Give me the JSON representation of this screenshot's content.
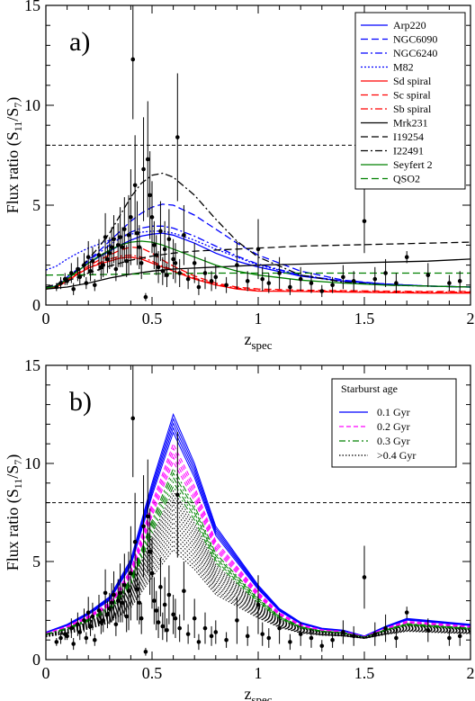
{
  "chart_data": [
    {
      "type": "line",
      "panel_label": "a)",
      "xlabel": "z",
      "xlabel_sub": "spec",
      "ylabel": "Flux ratio (S",
      "ylabel_sub1": "11",
      "ylabel_mid": "/S",
      "ylabel_sub2": "7",
      "ylabel_end": ")",
      "xlim": [
        0,
        2
      ],
      "ylim": [
        0,
        15
      ],
      "xticks": [
        "0",
        "0.5",
        "1",
        "1.5",
        "2"
      ],
      "yticks": [
        "0",
        "5",
        "10",
        "15"
      ],
      "reference_line": {
        "y": 8,
        "style": "dashed"
      },
      "legend_position": "top-right",
      "series": [
        {
          "name": "Arp220",
          "color": "#0000ff",
          "dash": "solid",
          "x": [
            0.0,
            0.05,
            0.1,
            0.15,
            0.2,
            0.25,
            0.3,
            0.35,
            0.4,
            0.45,
            0.5,
            0.55,
            0.6,
            0.7,
            0.8,
            0.9,
            1.0,
            1.2,
            1.4,
            1.6,
            1.8,
            2.0
          ],
          "y": [
            0.85,
            0.95,
            1.3,
            1.7,
            2.1,
            2.4,
            2.7,
            3.0,
            3.25,
            3.45,
            3.55,
            3.6,
            3.5,
            3.1,
            2.6,
            2.2,
            1.9,
            1.45,
            1.2,
            1.05,
            0.95,
            0.9
          ]
        },
        {
          "name": "NGC6090",
          "color": "#0000ff",
          "dash": "8,4",
          "x": [
            0.0,
            0.05,
            0.1,
            0.15,
            0.2,
            0.25,
            0.3,
            0.35,
            0.4,
            0.45,
            0.5,
            0.55,
            0.6,
            0.7,
            0.8,
            0.9,
            1.0,
            1.2,
            1.4,
            1.6,
            1.8,
            2.0
          ],
          "y": [
            0.9,
            1.0,
            1.4,
            1.8,
            2.25,
            2.7,
            3.2,
            3.7,
            4.2,
            4.6,
            4.9,
            5.05,
            5.0,
            4.5,
            3.8,
            3.1,
            2.5,
            1.7,
            1.25,
            1.05,
            0.95,
            0.9
          ]
        },
        {
          "name": "NGC6240",
          "color": "#0000ff",
          "dash": "8,3,2,3",
          "x": [
            0.0,
            0.05,
            0.1,
            0.15,
            0.2,
            0.25,
            0.3,
            0.35,
            0.4,
            0.45,
            0.5,
            0.55,
            0.6,
            0.7,
            0.8,
            0.9,
            1.0,
            1.2,
            1.4,
            1.6,
            1.8,
            2.0
          ],
          "y": [
            0.85,
            0.95,
            1.3,
            1.75,
            2.2,
            2.6,
            3.0,
            3.35,
            3.65,
            3.85,
            3.95,
            3.95,
            3.85,
            3.45,
            2.95,
            2.45,
            2.05,
            1.5,
            1.2,
            1.05,
            0.95,
            0.9
          ]
        },
        {
          "name": "M82",
          "color": "#0000ff",
          "dash": "2,2",
          "x": [
            0.0,
            0.05,
            0.1,
            0.15,
            0.2,
            0.25,
            0.3,
            0.35,
            0.4,
            0.45,
            0.5,
            0.55,
            0.6,
            0.7,
            0.8,
            0.9,
            1.0,
            1.2,
            1.4,
            1.6,
            1.8,
            2.0
          ],
          "y": [
            1.75,
            1.95,
            2.3,
            2.6,
            2.85,
            3.05,
            3.25,
            3.4,
            3.55,
            3.65,
            3.7,
            3.7,
            3.6,
            3.25,
            2.8,
            2.4,
            2.0,
            1.5,
            1.2,
            1.05,
            0.95,
            0.9
          ]
        },
        {
          "name": "Sd spiral",
          "color": "#ff0000",
          "dash": "solid",
          "x": [
            0.0,
            0.05,
            0.1,
            0.15,
            0.2,
            0.25,
            0.3,
            0.35,
            0.4,
            0.45,
            0.5,
            0.55,
            0.6,
            0.7,
            0.8,
            0.9,
            1.0,
            1.2,
            1.4,
            1.6,
            1.8,
            2.0
          ],
          "y": [
            0.8,
            0.9,
            1.2,
            1.55,
            1.85,
            2.05,
            2.2,
            2.35,
            2.4,
            2.3,
            2.1,
            1.9,
            1.7,
            1.3,
            1.0,
            0.8,
            0.7,
            0.68,
            0.65,
            0.62,
            0.6,
            0.6
          ]
        },
        {
          "name": "Sc spiral",
          "color": "#ff0000",
          "dash": "8,4",
          "x": [
            0.0,
            0.05,
            0.1,
            0.15,
            0.2,
            0.25,
            0.3,
            0.35,
            0.4,
            0.45,
            0.5,
            0.55,
            0.6,
            0.7,
            0.8,
            0.9,
            1.0,
            1.2,
            1.4,
            1.6,
            1.8,
            2.0
          ],
          "y": [
            0.8,
            0.92,
            1.25,
            1.6,
            1.95,
            2.25,
            2.5,
            2.75,
            2.9,
            2.85,
            2.6,
            2.25,
            1.95,
            1.45,
            1.1,
            0.9,
            0.8,
            0.75,
            0.72,
            0.7,
            0.68,
            0.68
          ]
        },
        {
          "name": "Sb spiral",
          "color": "#ff0000",
          "dash": "8,3,2,3",
          "x": [
            0.0,
            0.05,
            0.1,
            0.15,
            0.2,
            0.25,
            0.3,
            0.35,
            0.4,
            0.45,
            0.5,
            0.55,
            0.6,
            0.7,
            0.8,
            0.9,
            1.0,
            1.2,
            1.4,
            1.6,
            1.8,
            2.0
          ],
          "y": [
            0.8,
            0.9,
            1.2,
            1.55,
            1.85,
            2.1,
            2.3,
            2.45,
            2.5,
            2.4,
            2.2,
            1.95,
            1.75,
            1.35,
            1.05,
            0.85,
            0.72,
            0.7,
            0.68,
            0.66,
            0.65,
            0.65
          ]
        },
        {
          "name": "Mrk231",
          "color": "#000000",
          "dash": "solid",
          "x": [
            0.0,
            0.1,
            0.2,
            0.3,
            0.4,
            0.5,
            0.6,
            0.7,
            0.8,
            0.9,
            1.0,
            1.2,
            1.4,
            1.6,
            1.8,
            2.0
          ],
          "y": [
            0.8,
            0.9,
            1.1,
            1.35,
            1.55,
            1.7,
            1.8,
            1.85,
            1.9,
            1.95,
            2.0,
            2.05,
            2.1,
            2.15,
            2.2,
            2.3
          ]
        },
        {
          "name": "I19254",
          "color": "#000000",
          "dash": "8,4",
          "x": [
            0.0,
            0.1,
            0.2,
            0.3,
            0.4,
            0.5,
            0.6,
            0.7,
            0.8,
            0.9,
            1.0,
            1.2,
            1.4,
            1.6,
            1.8,
            2.0
          ],
          "y": [
            0.9,
            1.2,
            1.6,
            1.95,
            2.25,
            2.45,
            2.6,
            2.7,
            2.75,
            2.8,
            2.85,
            2.95,
            3.0,
            3.05,
            3.1,
            3.15
          ]
        },
        {
          "name": "I22491",
          "color": "#000000",
          "dash": "8,3,2,3",
          "x": [
            0.0,
            0.05,
            0.1,
            0.15,
            0.2,
            0.25,
            0.3,
            0.35,
            0.4,
            0.45,
            0.5,
            0.55,
            0.6,
            0.7,
            0.8,
            0.9,
            1.0,
            1.2,
            1.4,
            1.6,
            1.8,
            2.0
          ],
          "y": [
            0.85,
            0.95,
            1.3,
            1.75,
            2.3,
            2.9,
            3.6,
            4.5,
            5.4,
            6.1,
            6.5,
            6.6,
            6.4,
            5.5,
            4.3,
            3.2,
            2.4,
            1.5,
            1.15,
            1.0,
            0.95,
            0.9
          ]
        },
        {
          "name": "Seyfert 2",
          "color": "#008000",
          "dash": "solid",
          "x": [
            0.0,
            0.05,
            0.1,
            0.15,
            0.2,
            0.25,
            0.3,
            0.35,
            0.4,
            0.45,
            0.5,
            0.55,
            0.6,
            0.7,
            0.8,
            0.9,
            1.0,
            1.2,
            1.4,
            1.6,
            1.8,
            2.0
          ],
          "y": [
            0.85,
            0.95,
            1.3,
            1.7,
            2.1,
            2.45,
            2.75,
            3.0,
            3.15,
            3.2,
            3.15,
            3.0,
            2.8,
            2.4,
            2.0,
            1.7,
            1.5,
            1.25,
            1.1,
            1.0,
            0.95,
            0.9
          ]
        },
        {
          "name": "QSO2",
          "color": "#008000",
          "dash": "8,4",
          "x": [
            0.0,
            0.2,
            0.4,
            0.6,
            0.8,
            1.0,
            1.2,
            1.4,
            1.6,
            1.8,
            2.0
          ],
          "y": [
            1.5,
            1.52,
            1.55,
            1.58,
            1.6,
            1.6,
            1.6,
            1.6,
            1.6,
            1.6,
            1.6
          ]
        }
      ]
    },
    {
      "type": "line",
      "panel_label": "b)",
      "xlabel": "z",
      "xlabel_sub": "spec",
      "ylabel": "Flux ratio (S",
      "ylabel_sub1": "11",
      "ylabel_mid": "/S",
      "ylabel_sub2": "7",
      "ylabel_end": ")",
      "xlim": [
        0,
        2
      ],
      "ylim": [
        0,
        15
      ],
      "xticks": [
        "0",
        "0.5",
        "1",
        "1.5",
        "2"
      ],
      "yticks": [
        "0",
        "5",
        "10",
        "15"
      ],
      "reference_line": {
        "y": 8,
        "style": "dashed"
      },
      "legend_title": "Starburst age",
      "legend_position": "top-right",
      "x_grid": [
        0.0,
        0.1,
        0.2,
        0.3,
        0.4,
        0.5,
        0.6,
        0.7,
        0.8,
        0.9,
        1.0,
        1.1,
        1.2,
        1.3,
        1.4,
        1.5,
        1.6,
        1.7,
        1.8,
        1.9,
        2.0
      ],
      "base_shape": [
        1.4,
        1.8,
        2.4,
        3.2,
        5.1,
        9.0,
        12.5,
        10.0,
        6.8,
        5.3,
        3.8,
        2.6,
        1.9,
        1.6,
        1.5,
        1.2,
        1.7,
        2.1,
        2.0,
        1.9,
        1.8
      ],
      "series": [
        {
          "name": "0.1 Gyr",
          "color": "#0000ff",
          "dash": "solid",
          "count": 5,
          "peak_scales": [
            1.0,
            0.98,
            0.96,
            0.94,
            0.92
          ]
        },
        {
          "name": "0.2 Gyr",
          "color": "#ff00ff",
          "dash": "5,3",
          "count": 5,
          "peak_scales": [
            0.87,
            0.85,
            0.83,
            0.81,
            0.79
          ]
        },
        {
          "name": "0.3 Gyr",
          "color": "#008000",
          "dash": "7,3,2,3",
          "count": 5,
          "peak_scales": [
            0.76,
            0.74,
            0.72,
            0.7,
            0.68
          ]
        },
        {
          "name": ">0.4 Gyr",
          "color": "#000000",
          "dash": "1.5,2",
          "count": 14,
          "peak_scales": [
            0.66,
            0.64,
            0.62,
            0.6,
            0.58,
            0.56,
            0.54,
            0.52,
            0.5,
            0.48,
            0.46,
            0.44,
            0.42,
            0.4
          ]
        }
      ]
    }
  ],
  "observations": {
    "x": [
      0.05,
      0.07,
      0.09,
      0.1,
      0.12,
      0.13,
      0.15,
      0.16,
      0.18,
      0.19,
      0.2,
      0.21,
      0.22,
      0.23,
      0.25,
      0.26,
      0.27,
      0.28,
      0.29,
      0.3,
      0.31,
      0.32,
      0.33,
      0.34,
      0.35,
      0.36,
      0.37,
      0.38,
      0.39,
      0.4,
      0.41,
      0.42,
      0.43,
      0.44,
      0.45,
      0.46,
      0.47,
      0.48,
      0.49,
      0.5,
      0.51,
      0.52,
      0.53,
      0.54,
      0.55,
      0.56,
      0.57,
      0.58,
      0.6,
      0.61,
      0.62,
      0.63,
      0.65,
      0.67,
      0.7,
      0.72,
      0.75,
      0.78,
      0.8,
      0.85,
      0.9,
      0.95,
      1.0,
      1.02,
      1.05,
      1.1,
      1.15,
      1.2,
      1.25,
      1.3,
      1.35,
      1.4,
      1.45,
      1.5,
      1.55,
      1.6,
      1.65,
      1.7,
      1.8,
      1.9,
      1.95
    ],
    "y": [
      0.9,
      1.1,
      1.3,
      1.2,
      1.6,
      0.8,
      1.8,
      1.4,
      2.0,
      1.1,
      2.4,
      1.7,
      2.2,
      1.0,
      2.5,
      1.9,
      2.0,
      3.4,
      2.3,
      2.6,
      2.9,
      3.3,
      1.8,
      3.0,
      3.4,
      2.9,
      3.8,
      2.2,
      3.5,
      4.4,
      12.3,
      6.0,
      3.6,
      2.9,
      2.1,
      6.8,
      0.4,
      7.3,
      5.5,
      4.4,
      3.0,
      2.5,
      1.9,
      3.7,
      1.7,
      2.8,
      1.5,
      3.3,
      2.3,
      2.1,
      8.4,
      1.6,
      3.5,
      1.3,
      2.1,
      0.9,
      1.6,
      1.2,
      1.4,
      1.0,
      2.0,
      1.2,
      2.8,
      1.3,
      1.1,
      1.6,
      0.9,
      1.3,
      1.1,
      0.7,
      1.0,
      1.4,
      1.2,
      4.2,
      1.3,
      1.6,
      1.1,
      2.4,
      1.5,
      1.1,
      1.2
    ],
    "err": [
      0.2,
      0.3,
      0.3,
      0.2,
      0.5,
      0.3,
      0.6,
      0.4,
      0.6,
      0.3,
      0.8,
      0.5,
      0.7,
      0.3,
      0.8,
      0.6,
      0.6,
      1.2,
      0.7,
      0.8,
      1.0,
      1.2,
      0.6,
      1.1,
      1.5,
      1.0,
      1.6,
      0.8,
      2.0,
      2.4,
      3.0,
      2.5,
      1.6,
      1.1,
      0.8,
      2.6,
      0.2,
      2.9,
      2.2,
      1.8,
      1.2,
      1.0,
      0.8,
      1.5,
      0.7,
      1.4,
      0.6,
      1.5,
      1.0,
      1.0,
      3.2,
      0.7,
      1.5,
      0.5,
      1.0,
      0.4,
      0.8,
      0.5,
      0.6,
      0.4,
      1.2,
      0.5,
      1.5,
      0.6,
      0.5,
      0.8,
      0.4,
      0.6,
      0.5,
      0.3,
      0.4,
      0.6,
      0.5,
      1.6,
      0.6,
      0.7,
      0.5,
      0.3,
      0.6,
      0.4,
      0.5
    ]
  }
}
